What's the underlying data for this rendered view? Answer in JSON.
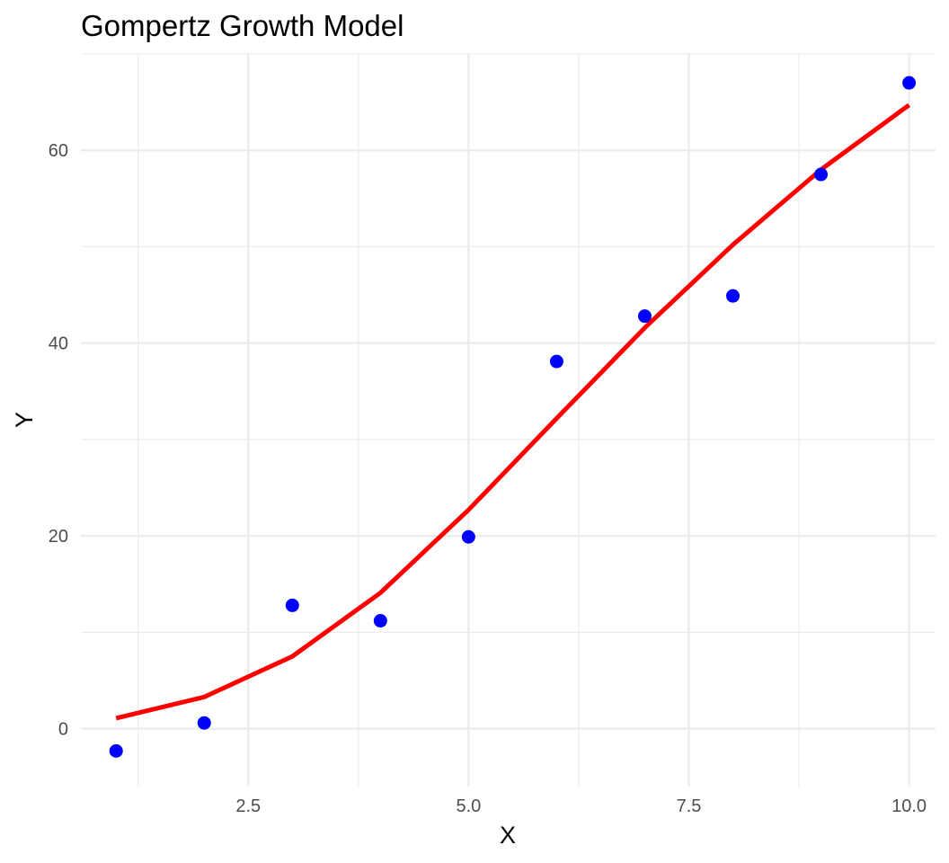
{
  "chart_data": {
    "type": "scatter",
    "title": "Gompertz Growth Model",
    "xlabel": "X",
    "ylabel": "Y",
    "xlim": [
      0.6,
      10.3
    ],
    "ylim": [
      -6,
      70
    ],
    "x_ticks": [
      2.5,
      5.0,
      7.5,
      10.0
    ],
    "x_tick_labels": [
      "2.5",
      "5.0",
      "7.5",
      "10.0"
    ],
    "y_ticks": [
      0,
      20,
      40,
      60
    ],
    "y_tick_labels": [
      "0",
      "20",
      "40",
      "60"
    ],
    "grid": true,
    "legend": "none",
    "series": [
      {
        "kind": "points",
        "color": "#0000ff",
        "x": [
          1,
          2,
          3,
          4,
          5,
          6,
          7,
          8,
          9,
          10
        ],
        "y": [
          -2.3,
          0.6,
          12.8,
          11.2,
          19.9,
          38.1,
          42.8,
          44.9,
          57.5,
          67.0
        ]
      },
      {
        "kind": "line",
        "color": "#ff0000",
        "x": [
          1,
          2,
          3,
          4,
          5,
          6,
          7,
          8,
          9,
          10
        ],
        "y": [
          1.1,
          3.3,
          7.5,
          14.1,
          22.7,
          32.2,
          41.6,
          50.2,
          58.0,
          64.7
        ]
      }
    ]
  }
}
